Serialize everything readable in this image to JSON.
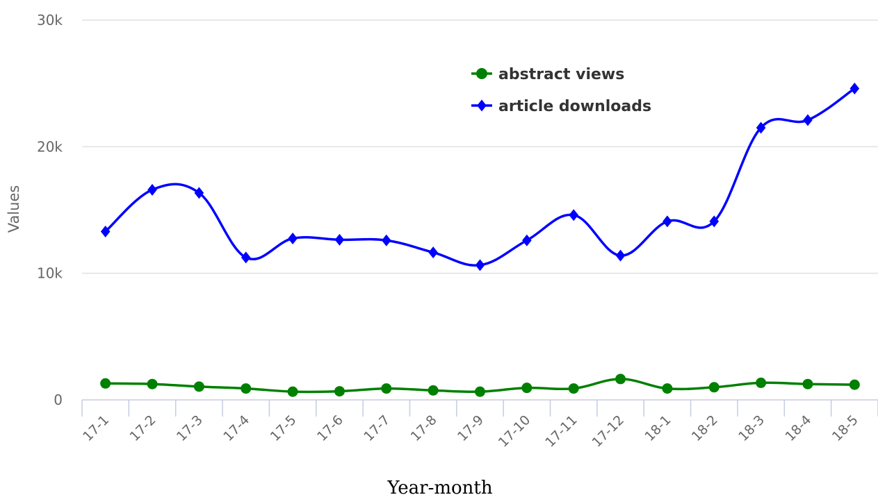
{
  "chart_data": {
    "type": "line",
    "xlabel": "Year-month",
    "ylabel": "Values",
    "ylim": [
      0,
      30000
    ],
    "y_ticks": [
      {
        "value": 0,
        "label": "0"
      },
      {
        "value": 10000,
        "label": "10k"
      },
      {
        "value": 20000,
        "label": "20k"
      },
      {
        "value": 30000,
        "label": "30k"
      }
    ],
    "grid": true,
    "legend_position": "top-right",
    "categories": [
      "17-1",
      "17-2",
      "17-3",
      "17-4",
      "17-5",
      "17-6",
      "17-7",
      "17-8",
      "17-9",
      "17-10",
      "17-11",
      "17-12",
      "18-1",
      "18-2",
      "18-3",
      "18-4",
      "18-5"
    ],
    "series": [
      {
        "name": "abstract views",
        "color": "#008000",
        "marker": "circle",
        "values": [
          1300,
          1250,
          1050,
          900,
          650,
          680,
          900,
          750,
          650,
          950,
          900,
          1650,
          900,
          1000,
          1350,
          1250,
          1200
        ]
      },
      {
        "name": "article downloads",
        "color": "#0000ff",
        "marker": "diamond",
        "values": [
          13300,
          16600,
          16350,
          11250,
          12750,
          12650,
          12600,
          11650,
          10650,
          12600,
          14600,
          11400,
          14100,
          14100,
          21500,
          22100,
          24600
        ]
      }
    ]
  }
}
